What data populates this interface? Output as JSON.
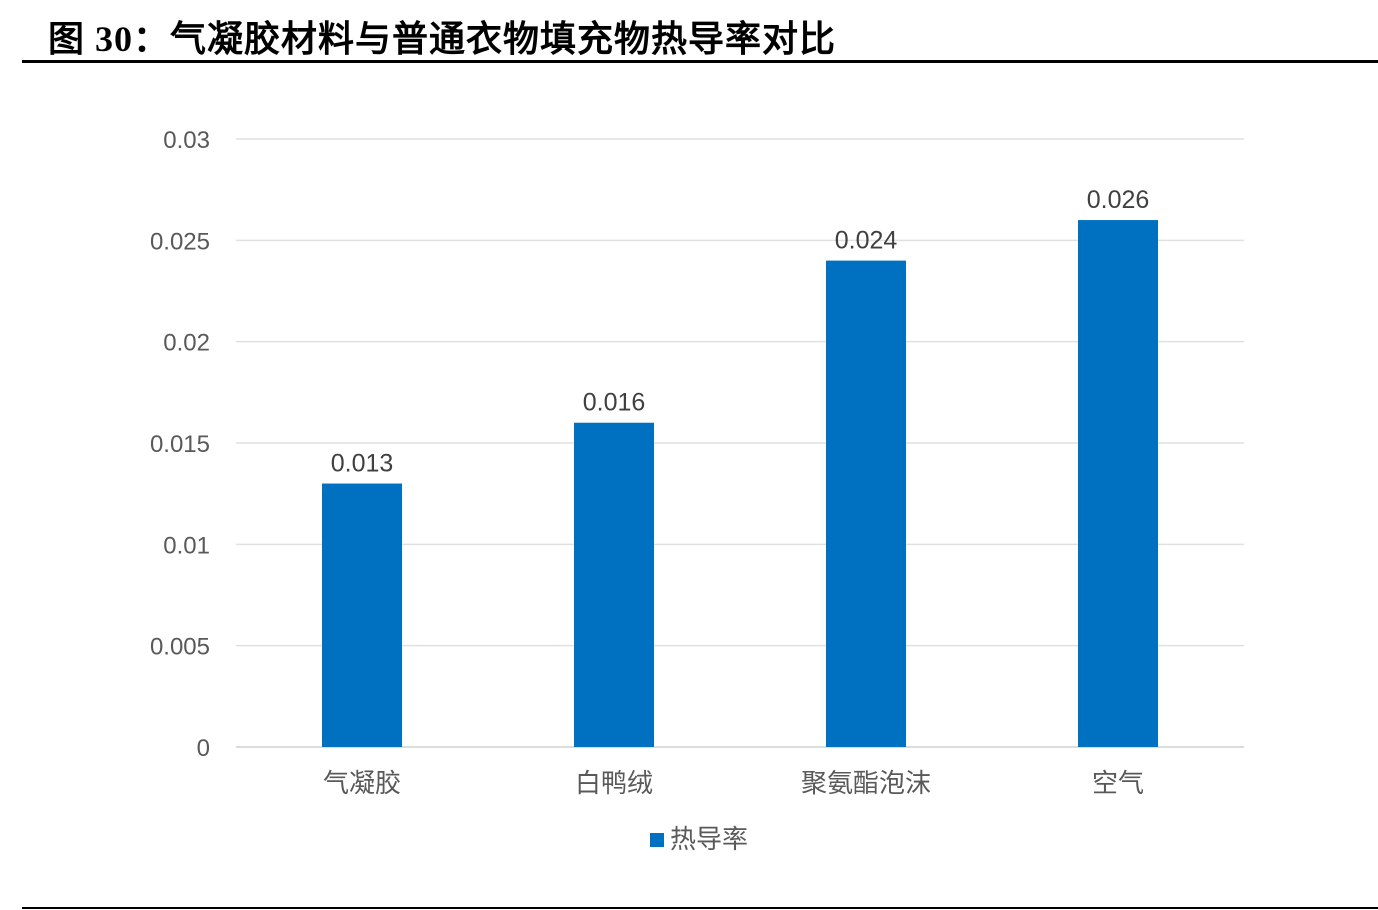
{
  "figure_title": "图 30：气凝胶材料与普通衣物填充物热导率对比",
  "chart_data": {
    "type": "bar",
    "title": "",
    "xlabel": "",
    "ylabel": "",
    "categories": [
      "气凝胶",
      "白鸭绒",
      "聚氨酯泡沫",
      "空气"
    ],
    "series": [
      {
        "name": "热导率",
        "values": [
          0.013,
          0.016,
          0.024,
          0.026
        ],
        "color": "#0070C0"
      }
    ],
    "data_labels": [
      "0.013",
      "0.016",
      "0.024",
      "0.026"
    ],
    "ylim": [
      0,
      0.03
    ],
    "yticks": [
      0,
      0.005,
      0.01,
      0.015,
      0.02,
      0.025,
      0.03
    ],
    "ytick_labels": [
      "0",
      "0.005",
      "0.01",
      "0.015",
      "0.02",
      "0.025",
      "0.03"
    ],
    "grid": true,
    "legend": "bottom"
  }
}
